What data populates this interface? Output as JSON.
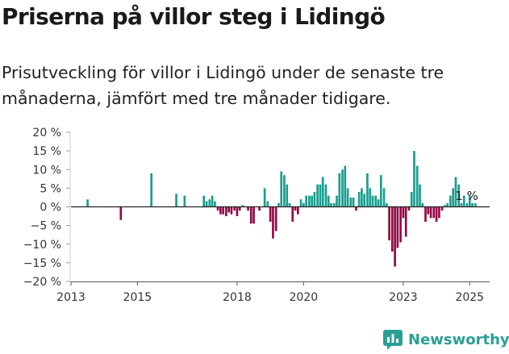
{
  "title": "Priserna på villor steg i Lidingö",
  "subtitle": "Prisutveckling för villor i Lidingö under de senaste tre månaderna, jämfört med tre månader tidigare.",
  "brand": {
    "name": "Newsworthy",
    "logo_icon": "newsworthy-logo-icon"
  },
  "colors": {
    "positive": "#1a9e8f",
    "negative": "#930a46",
    "axis": "#222222",
    "brand": "#2aa092"
  },
  "chart_data": {
    "type": "bar",
    "title": "Priserna på villor steg i Lidingö",
    "xlabel": "",
    "ylabel": "",
    "ylim": [
      -20,
      20
    ],
    "xlim": [
      2013.0,
      2025.6
    ],
    "yticks": [
      {
        "value": 20,
        "label": "20 %"
      },
      {
        "value": 15,
        "label": "15 %"
      },
      {
        "value": 10,
        "label": "10 %"
      },
      {
        "value": 5,
        "label": "5 %"
      },
      {
        "value": 0,
        "label": "0 %"
      },
      {
        "value": -5,
        "label": "−5 %"
      },
      {
        "value": -10,
        "label": "−10 %"
      },
      {
        "value": -15,
        "label": "−15 %"
      },
      {
        "value": -20,
        "label": "−20 %"
      }
    ],
    "xticks": [
      {
        "value": 2013,
        "label": "2013"
      },
      {
        "value": 2015,
        "label": "2015"
      },
      {
        "value": 2018,
        "label": "2018"
      },
      {
        "value": 2020,
        "label": "2020"
      },
      {
        "value": 2023,
        "label": "2023"
      },
      {
        "value": 2025,
        "label": "2025"
      }
    ],
    "annotation": {
      "text": "1 %",
      "x": 2025.0,
      "y": 1
    },
    "series": [
      {
        "name": "Prisutveckling",
        "points": [
          {
            "x": 2013.5,
            "y": 2
          },
          {
            "x": 2014.5,
            "y": -3.5
          },
          {
            "x": 2015.42,
            "y": 9
          },
          {
            "x": 2016.17,
            "y": 3.5
          },
          {
            "x": 2016.42,
            "y": 3
          },
          {
            "x": 2017.0,
            "y": 3
          },
          {
            "x": 2017.08,
            "y": 1.5
          },
          {
            "x": 2017.17,
            "y": 2
          },
          {
            "x": 2017.25,
            "y": 3
          },
          {
            "x": 2017.33,
            "y": 1.5
          },
          {
            "x": 2017.42,
            "y": -1
          },
          {
            "x": 2017.5,
            "y": -2
          },
          {
            "x": 2017.58,
            "y": -2
          },
          {
            "x": 2017.67,
            "y": -2.5
          },
          {
            "x": 2017.75,
            "y": -1.5
          },
          {
            "x": 2017.83,
            "y": -2
          },
          {
            "x": 2017.92,
            "y": -1
          },
          {
            "x": 2018.0,
            "y": -2.5
          },
          {
            "x": 2018.08,
            "y": -1
          },
          {
            "x": 2018.17,
            "y": 0.5
          },
          {
            "x": 2018.33,
            "y": -1
          },
          {
            "x": 2018.42,
            "y": -4.5
          },
          {
            "x": 2018.5,
            "y": -4.5
          },
          {
            "x": 2018.67,
            "y": -1
          },
          {
            "x": 2018.83,
            "y": 5
          },
          {
            "x": 2018.92,
            "y": 1.5
          },
          {
            "x": 2019.0,
            "y": -4
          },
          {
            "x": 2019.08,
            "y": -8.5
          },
          {
            "x": 2019.17,
            "y": -6.5
          },
          {
            "x": 2019.25,
            "y": 1
          },
          {
            "x": 2019.33,
            "y": 9.5
          },
          {
            "x": 2019.42,
            "y": 8.5
          },
          {
            "x": 2019.5,
            "y": 6
          },
          {
            "x": 2019.58,
            "y": 1
          },
          {
            "x": 2019.67,
            "y": -4
          },
          {
            "x": 2019.75,
            "y": -1
          },
          {
            "x": 2019.83,
            "y": -2
          },
          {
            "x": 2019.92,
            "y": 2
          },
          {
            "x": 2020.0,
            "y": 1
          },
          {
            "x": 2020.08,
            "y": 3
          },
          {
            "x": 2020.17,
            "y": 3
          },
          {
            "x": 2020.25,
            "y": 3
          },
          {
            "x": 2020.33,
            "y": 4
          },
          {
            "x": 2020.42,
            "y": 6
          },
          {
            "x": 2020.5,
            "y": 6
          },
          {
            "x": 2020.58,
            "y": 8
          },
          {
            "x": 2020.67,
            "y": 6
          },
          {
            "x": 2020.75,
            "y": 3
          },
          {
            "x": 2020.83,
            "y": 1
          },
          {
            "x": 2020.92,
            "y": 1
          },
          {
            "x": 2021.0,
            "y": 3
          },
          {
            "x": 2021.08,
            "y": 9
          },
          {
            "x": 2021.17,
            "y": 10
          },
          {
            "x": 2021.25,
            "y": 11
          },
          {
            "x": 2021.33,
            "y": 5
          },
          {
            "x": 2021.42,
            "y": 2.5
          },
          {
            "x": 2021.5,
            "y": 2.5
          },
          {
            "x": 2021.58,
            "y": -1
          },
          {
            "x": 2021.67,
            "y": 4
          },
          {
            "x": 2021.75,
            "y": 5
          },
          {
            "x": 2021.83,
            "y": 3.5
          },
          {
            "x": 2021.92,
            "y": 9
          },
          {
            "x": 2022.0,
            "y": 5
          },
          {
            "x": 2022.08,
            "y": 3
          },
          {
            "x": 2022.17,
            "y": 3
          },
          {
            "x": 2022.25,
            "y": 2
          },
          {
            "x": 2022.33,
            "y": 8.5
          },
          {
            "x": 2022.42,
            "y": 5
          },
          {
            "x": 2022.5,
            "y": 1
          },
          {
            "x": 2022.58,
            "y": -9
          },
          {
            "x": 2022.67,
            "y": -12
          },
          {
            "x": 2022.75,
            "y": -16
          },
          {
            "x": 2022.83,
            "y": -11
          },
          {
            "x": 2022.92,
            "y": -9.5
          },
          {
            "x": 2023.0,
            "y": -3
          },
          {
            "x": 2023.08,
            "y": -8
          },
          {
            "x": 2023.17,
            "y": -1
          },
          {
            "x": 2023.25,
            "y": 4
          },
          {
            "x": 2023.33,
            "y": 15
          },
          {
            "x": 2023.42,
            "y": 11
          },
          {
            "x": 2023.5,
            "y": 6
          },
          {
            "x": 2023.58,
            "y": 1
          },
          {
            "x": 2023.67,
            "y": -4
          },
          {
            "x": 2023.75,
            "y": -2
          },
          {
            "x": 2023.83,
            "y": -3
          },
          {
            "x": 2023.92,
            "y": -3
          },
          {
            "x": 2024.0,
            "y": -4
          },
          {
            "x": 2024.08,
            "y": -3
          },
          {
            "x": 2024.17,
            "y": -1
          },
          {
            "x": 2024.25,
            "y": 0.5
          },
          {
            "x": 2024.33,
            "y": 1
          },
          {
            "x": 2024.42,
            "y": 3
          },
          {
            "x": 2024.5,
            "y": 5
          },
          {
            "x": 2024.58,
            "y": 8
          },
          {
            "x": 2024.67,
            "y": 6
          },
          {
            "x": 2024.75,
            "y": 1
          },
          {
            "x": 2024.83,
            "y": 3
          },
          {
            "x": 2024.92,
            "y": 1
          },
          {
            "x": 2025.0,
            "y": 3
          },
          {
            "x": 2025.08,
            "y": 1
          },
          {
            "x": 2025.17,
            "y": 1
          }
        ]
      }
    ]
  }
}
